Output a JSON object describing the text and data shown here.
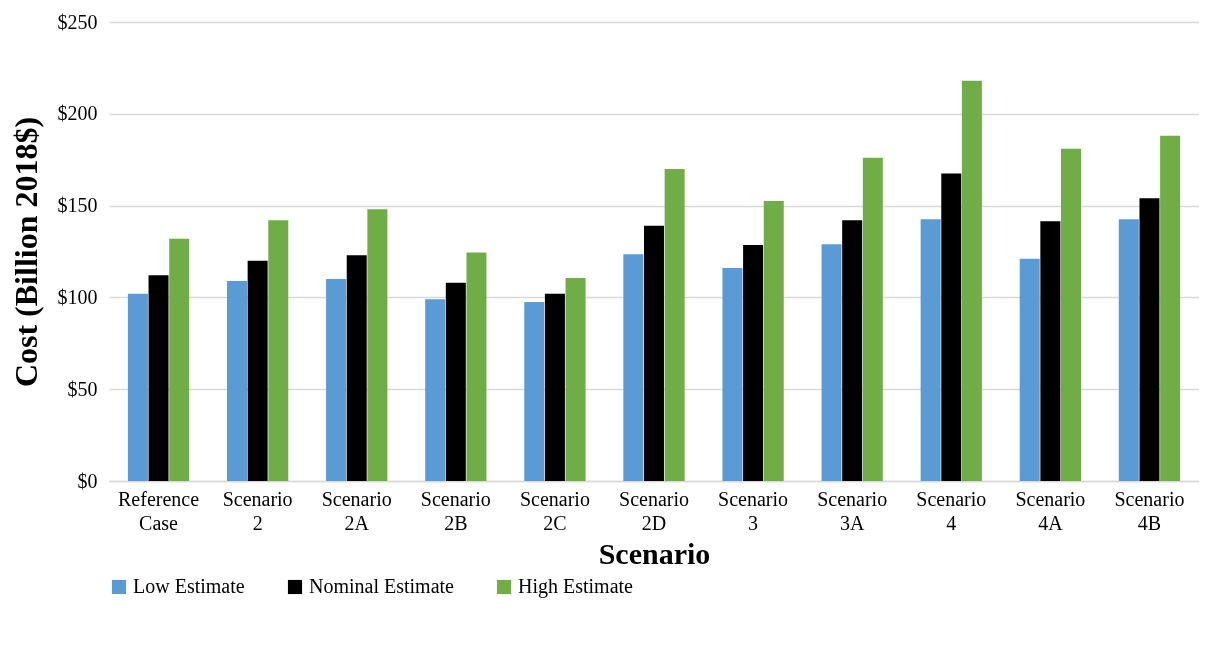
{
  "chart_data": {
    "type": "bar",
    "xlabel": "Scenario",
    "ylabel": "Cost (Billion 2018$)",
    "categories": [
      "Reference Case",
      "Scenario 2",
      "Scenario 2A",
      "Scenario 2B",
      "Scenario 2C",
      "Scenario 2D",
      "Scenario 3",
      "Scenario 3A",
      "Scenario 4",
      "Scenario 4A",
      "Scenario 4B"
    ],
    "series": [
      {
        "name": "Low Estimate",
        "color": "#5b9bd5",
        "values": [
          102,
          109,
          110,
          99,
          97.5,
          123.5,
          116,
          129,
          142.5,
          121,
          142.5
        ]
      },
      {
        "name": "Nominal Estimate",
        "color": "#000000",
        "values": [
          112,
          120,
          123,
          108,
          102,
          139,
          128.5,
          142,
          167.5,
          141.5,
          154
        ]
      },
      {
        "name": "High Estimate",
        "color": "#70ad47",
        "values": [
          132,
          142,
          148,
          124.5,
          110.5,
          170,
          152.5,
          176,
          218,
          181,
          188
        ]
      }
    ],
    "ylim": [
      0,
      250
    ],
    "yticks": [
      {
        "value": 0,
        "label": "$0"
      },
      {
        "value": 50,
        "label": "$50"
      },
      {
        "value": 100,
        "label": "$100"
      },
      {
        "value": 150,
        "label": "$150"
      },
      {
        "value": 200,
        "label": "$200"
      },
      {
        "value": 250,
        "label": "$250"
      }
    ],
    "grid": "y",
    "legend": "bottom"
  }
}
